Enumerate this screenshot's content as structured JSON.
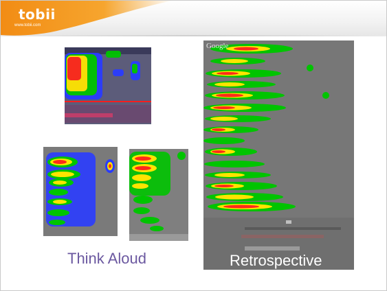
{
  "brand": {
    "logo_text": "tobii",
    "logo_url": "www.tobii.com",
    "accent_color": "#f39b1e"
  },
  "heatmaps": [
    {
      "name": "top",
      "colors": [
        "#2a3cff",
        "#00d400",
        "#ffe400",
        "#ff1a1a"
      ]
    },
    {
      "name": "bottom-left",
      "colors": [
        "#2a3cff",
        "#00d400",
        "#ffe400",
        "#ff1a1a"
      ]
    },
    {
      "name": "bottom-middle",
      "colors": [
        "#00d400",
        "#ffe400",
        "#ff1a1a"
      ]
    },
    {
      "name": "retrospective",
      "colors": [
        "#00d400",
        "#ffe400",
        "#ff1a1a"
      ]
    }
  ],
  "labels": {
    "think_aloud": "Think Aloud",
    "retrospective": "Retrospective"
  },
  "retro_thumb_header": "Google"
}
